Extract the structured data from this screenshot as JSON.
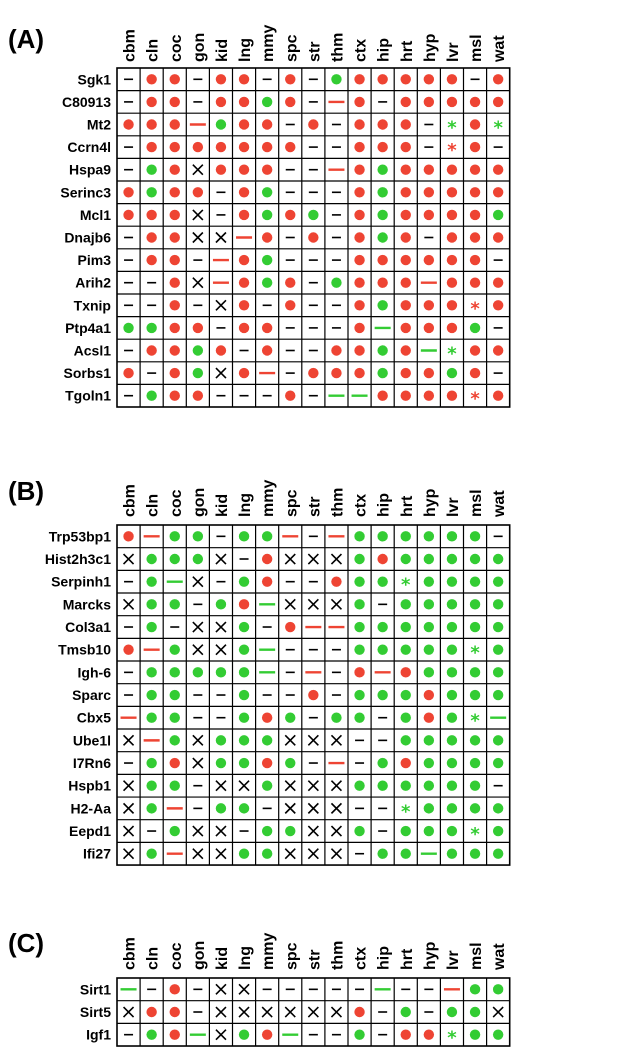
{
  "colors": {
    "red": "#ee4433",
    "green": "#33cc33",
    "grid": "#000000"
  },
  "legend_codes": {
    "R": "red dot",
    "G": "green dot",
    "-": "dash",
    "X": "cross",
    "r": "red line",
    "g": "green line",
    "R*": "red star",
    "G*": "green star"
  },
  "chart_data": [
    {
      "type": "table",
      "panel": "(A)",
      "columns": [
        "cbm",
        "cln",
        "coc",
        "gon",
        "kid",
        "lng",
        "mmy",
        "spc",
        "str",
        "thm",
        "ctx",
        "hip",
        "hrt",
        "hyp",
        "lvr",
        "msl",
        "wat"
      ],
      "rows": [
        {
          "gene": "Sgk1",
          "cells": [
            "-",
            "R",
            "R",
            "-",
            "R",
            "R",
            "-",
            "R",
            "-",
            "G",
            "R",
            "R",
            "R",
            "R",
            "R",
            "-",
            "R"
          ]
        },
        {
          "gene": "C80913",
          "cells": [
            "-",
            "R",
            "R",
            "-",
            "R",
            "R",
            "G",
            "R",
            "-",
            "r",
            "R",
            "-",
            "R",
            "R",
            "R",
            "R",
            "R"
          ]
        },
        {
          "gene": "Mt2",
          "cells": [
            "R",
            "R",
            "R",
            "r",
            "G",
            "R",
            "R",
            "-",
            "R",
            "-",
            "R",
            "R",
            "R",
            "-",
            "G*",
            "R",
            "G*"
          ]
        },
        {
          "gene": "Ccrn4l",
          "cells": [
            "-",
            "R",
            "R",
            "R",
            "R",
            "R",
            "R",
            "R",
            "-",
            "-",
            "R",
            "R",
            "R",
            "-",
            "R*",
            "R",
            "-"
          ]
        },
        {
          "gene": "Hspa9",
          "cells": [
            "-",
            "G",
            "R",
            "X",
            "R",
            "R",
            "R",
            "-",
            "-",
            "r",
            "R",
            "G",
            "R",
            "R",
            "R",
            "R",
            "R"
          ]
        },
        {
          "gene": "Serinc3",
          "cells": [
            "R",
            "G",
            "R",
            "R",
            "-",
            "R",
            "G",
            "-",
            "-",
            "-",
            "R",
            "G",
            "R",
            "R",
            "R",
            "R",
            "R"
          ]
        },
        {
          "gene": "Mcl1",
          "cells": [
            "R",
            "R",
            "R",
            "X",
            "-",
            "R",
            "G",
            "R",
            "G",
            "-",
            "R",
            "G",
            "R",
            "R",
            "R",
            "R",
            "G"
          ]
        },
        {
          "gene": "Dnajb6",
          "cells": [
            "-",
            "R",
            "R",
            "X",
            "X",
            "r",
            "R",
            "-",
            "R",
            "-",
            "R",
            "G",
            "R",
            "-",
            "R",
            "R",
            "R"
          ]
        },
        {
          "gene": "Pim3",
          "cells": [
            "-",
            "R",
            "R",
            "-",
            "r",
            "R",
            "G",
            "-",
            "-",
            "-",
            "R",
            "R",
            "R",
            "R",
            "R",
            "R",
            "-"
          ]
        },
        {
          "gene": "Arih2",
          "cells": [
            "-",
            "-",
            "R",
            "X",
            "r",
            "R",
            "G",
            "R",
            "-",
            "G",
            "R",
            "R",
            "R",
            "r",
            "R",
            "R",
            "R"
          ]
        },
        {
          "gene": "Txnip",
          "cells": [
            "-",
            "-",
            "R",
            "-",
            "X",
            "R",
            "-",
            "R",
            "-",
            "-",
            "R",
            "G",
            "R",
            "R",
            "R",
            "R*",
            "R"
          ]
        },
        {
          "gene": "Ptp4a1",
          "cells": [
            "G",
            "G",
            "R",
            "R",
            "-",
            "R",
            "R",
            "-",
            "-",
            "-",
            "R",
            "g",
            "R",
            "R",
            "R",
            "G",
            "-"
          ]
        },
        {
          "gene": "Acsl1",
          "cells": [
            "-",
            "R",
            "R",
            "G",
            "R",
            "-",
            "R",
            "-",
            "-",
            "R",
            "R",
            "G",
            "R",
            "g",
            "G*",
            "R",
            "R"
          ]
        },
        {
          "gene": "Sorbs1",
          "cells": [
            "R",
            "-",
            "R",
            "G",
            "X",
            "R",
            "r",
            "-",
            "R",
            "R",
            "R",
            "G",
            "R",
            "R",
            "G",
            "R",
            "-"
          ]
        },
        {
          "gene": "Tgoln1",
          "cells": [
            "-",
            "G",
            "R",
            "R",
            "-",
            "-",
            "-",
            "R",
            "-",
            "g",
            "g",
            "R",
            "R",
            "R",
            "R",
            "R*",
            "R"
          ]
        }
      ]
    },
    {
      "type": "table",
      "panel": "(B)",
      "columns": [
        "cbm",
        "cln",
        "coc",
        "gon",
        "kid",
        "lng",
        "mmy",
        "spc",
        "str",
        "thm",
        "ctx",
        "hip",
        "hrt",
        "hyp",
        "lvr",
        "msl",
        "wat"
      ],
      "rows": [
        {
          "gene": "Trp53bp1",
          "cells": [
            "R",
            "r",
            "G",
            "G",
            "-",
            "G",
            "G",
            "r",
            "-",
            "r",
            "G",
            "G",
            "G",
            "G",
            "G",
            "G",
            "-"
          ]
        },
        {
          "gene": "Hist2h3c1",
          "cells": [
            "X",
            "G",
            "G",
            "G",
            "X",
            "-",
            "R",
            "X",
            "X",
            "X",
            "G",
            "R",
            "G",
            "G",
            "G",
            "G",
            "G"
          ]
        },
        {
          "gene": "Serpinh1",
          "cells": [
            "-",
            "G",
            "g",
            "X",
            "-",
            "G",
            "R",
            "-",
            "-",
            "R",
            "G",
            "G",
            "G*",
            "G",
            "G",
            "G",
            "G"
          ]
        },
        {
          "gene": "Marcks",
          "cells": [
            "X",
            "G",
            "G",
            "-",
            "G",
            "R",
            "g",
            "X",
            "X",
            "X",
            "G",
            "-",
            "G",
            "G",
            "G",
            "G",
            "G"
          ]
        },
        {
          "gene": "Col3a1",
          "cells": [
            "-",
            "G",
            "-",
            "X",
            "X",
            "G",
            "-",
            "R",
            "r",
            "r",
            "G",
            "G",
            "G",
            "G",
            "G",
            "G",
            "G"
          ]
        },
        {
          "gene": "Tmsb10",
          "cells": [
            "R",
            "r",
            "G",
            "X",
            "X",
            "G",
            "g",
            "-",
            "-",
            "-",
            "G",
            "G",
            "G",
            "G",
            "G",
            "G*",
            "G"
          ]
        },
        {
          "gene": "Igh-6",
          "cells": [
            "-",
            "G",
            "G",
            "G",
            "G",
            "G",
            "g",
            "-",
            "r",
            "-",
            "R",
            "r",
            "R",
            "G",
            "G",
            "G",
            "G"
          ]
        },
        {
          "gene": "Sparc",
          "cells": [
            "-",
            "G",
            "G",
            "-",
            "-",
            "G",
            "-",
            "-",
            "R",
            "-",
            "G",
            "G",
            "G",
            "R",
            "G",
            "G",
            "G"
          ]
        },
        {
          "gene": "Cbx5",
          "cells": [
            "r",
            "G",
            "G",
            "-",
            "-",
            "G",
            "R",
            "G",
            "-",
            "G",
            "G",
            "-",
            "G",
            "R",
            "G",
            "G*",
            "g"
          ]
        },
        {
          "gene": "Ube1l",
          "cells": [
            "X",
            "r",
            "G",
            "X",
            "G",
            "G",
            "G",
            "X",
            "X",
            "X",
            "-",
            "-",
            "G",
            "G",
            "G",
            "G",
            "G"
          ]
        },
        {
          "gene": "I7Rn6",
          "cells": [
            "-",
            "G",
            "R",
            "X",
            "G",
            "G",
            "R",
            "G",
            "-",
            "r",
            "-",
            "G",
            "R",
            "G",
            "G",
            "G",
            "G"
          ]
        },
        {
          "gene": "Hspb1",
          "cells": [
            "X",
            "G",
            "G",
            "-",
            "X",
            "X",
            "G",
            "X",
            "X",
            "X",
            "G",
            "G",
            "G",
            "G",
            "G",
            "G",
            "-"
          ]
        },
        {
          "gene": "H2-Aa",
          "cells": [
            "X",
            "G",
            "r",
            "-",
            "G",
            "G",
            "-",
            "X",
            "X",
            "X",
            "-",
            "-",
            "G*",
            "G",
            "G",
            "G",
            "G"
          ]
        },
        {
          "gene": "Eepd1",
          "cells": [
            "X",
            "-",
            "G",
            "X",
            "X",
            "-",
            "G",
            "G",
            "X",
            "X",
            "G",
            "-",
            "G",
            "G",
            "G",
            "G*",
            "G"
          ]
        },
        {
          "gene": "Ifi27",
          "cells": [
            "X",
            "G",
            "r",
            "X",
            "X",
            "G",
            "G",
            "X",
            "X",
            "X",
            "-",
            "G",
            "G",
            "g",
            "G",
            "G",
            "G"
          ]
        }
      ]
    },
    {
      "type": "table",
      "panel": "(C)",
      "columns": [
        "cbm",
        "cln",
        "coc",
        "gon",
        "kid",
        "lng",
        "mmy",
        "spc",
        "str",
        "thm",
        "ctx",
        "hip",
        "hrt",
        "hyp",
        "lvr",
        "msl",
        "wat"
      ],
      "rows": [
        {
          "gene": "Sirt1",
          "cells": [
            "g",
            "-",
            "R",
            "-",
            "X",
            "X",
            "-",
            "-",
            "-",
            "-",
            "-",
            "g",
            "-",
            "-",
            "r",
            "G",
            "G"
          ]
        },
        {
          "gene": "Sirt5",
          "cells": [
            "X",
            "R",
            "R",
            "-",
            "X",
            "X",
            "X",
            "X",
            "X",
            "X",
            "R",
            "-",
            "G",
            "-",
            "G",
            "G",
            "X"
          ]
        },
        {
          "gene": "Igf1",
          "cells": [
            "-",
            "G",
            "R",
            "g",
            "X",
            "G",
            "R",
            "g",
            "-",
            "-",
            "G",
            "-",
            "R",
            "R",
            "G*",
            "G",
            "G"
          ]
        }
      ]
    }
  ]
}
